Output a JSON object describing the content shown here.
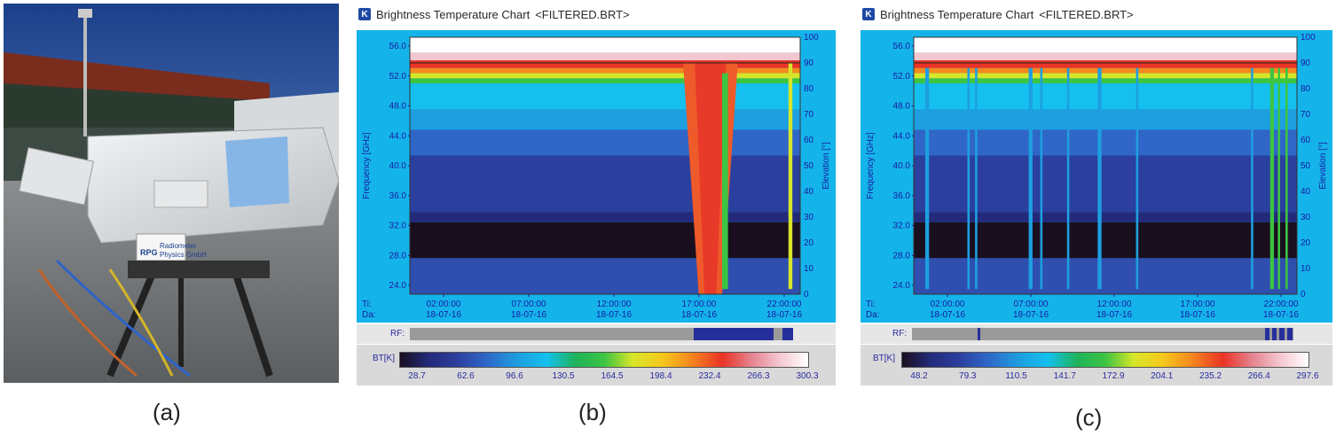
{
  "captions": {
    "a": "(a)",
    "b": "(b)",
    "c": "(c)"
  },
  "photo": {
    "plate_line1": "Radiometer",
    "plate_line2": "Physics GmbH",
    "logo_letters": "RPG"
  },
  "charts": [
    {
      "window_title": "Brightness Temperature Chart",
      "file_tag": "<FILTERED.BRT>",
      "y_label": "Frequency [GHz]",
      "y2_label": "Elevation [°]",
      "y_ticks": [
        "56.0",
        "52.0",
        "48.0",
        "44.0",
        "40.0",
        "36.0",
        "32.0",
        "28.0",
        "24.0"
      ],
      "y2_ticks": [
        "100",
        "90",
        "80",
        "70",
        "60",
        "50",
        "40",
        "30",
        "20",
        "10",
        "0"
      ],
      "time_prefix": "Ti:",
      "date_prefix": "Da:",
      "time_ticks": [
        "02:00:00",
        "07:00:00",
        "12:00:00",
        "17:00:00",
        "22:00:00"
      ],
      "date_ticks": [
        "18-07-16",
        "18-07-16",
        "18-07-16",
        "18-07-16",
        "18-07-16"
      ],
      "rf_label": "RF:",
      "bt_label": "BT[K]",
      "bt_ticks": [
        "28.7",
        "62.6",
        "96.6",
        "130.5",
        "164.5",
        "198.4",
        "232.4",
        "266.3",
        "300.3"
      ]
    },
    {
      "window_title": "Brightness Temperature Chart",
      "file_tag": "<FILTERED.BRT>",
      "y_label": "Frequency [GHz]",
      "y2_label": "Elevation [°]",
      "y_ticks": [
        "56.0",
        "52.0",
        "48.0",
        "44.0",
        "40.0",
        "36.0",
        "32.0",
        "28.0",
        "24.0"
      ],
      "y2_ticks": [
        "100",
        "90",
        "80",
        "70",
        "60",
        "50",
        "40",
        "30",
        "20",
        "10",
        "0"
      ],
      "time_prefix": "Ti:",
      "date_prefix": "Da:",
      "time_ticks": [
        "02:00:00",
        "07:00:00",
        "12:00:00",
        "17:00:00",
        "22:00:00"
      ],
      "date_ticks": [
        "18-07-16",
        "18-07-16",
        "18-07-16",
        "18-07-16",
        "18-07-16"
      ],
      "rf_label": "RF:",
      "bt_label": "BT[K]",
      "bt_ticks": [
        "48.2",
        "79.3",
        "110.5",
        "141.7",
        "172.9",
        "204.1",
        "235.2",
        "266.4",
        "297.6"
      ]
    }
  ],
  "colors": {
    "chart_background": "#14b4ea",
    "colormap": [
      "#1a0f1e",
      "#232a7a",
      "#2b3f9e",
      "#2f66c7",
      "#1d9fe0",
      "#15c0ee",
      "#1fb35a",
      "#3cc443",
      "#d7e62a",
      "#f5c91c",
      "#f58a1e",
      "#ea3326",
      "#e4828d",
      "#f4c7d0",
      "#ffffff"
    ]
  }
}
